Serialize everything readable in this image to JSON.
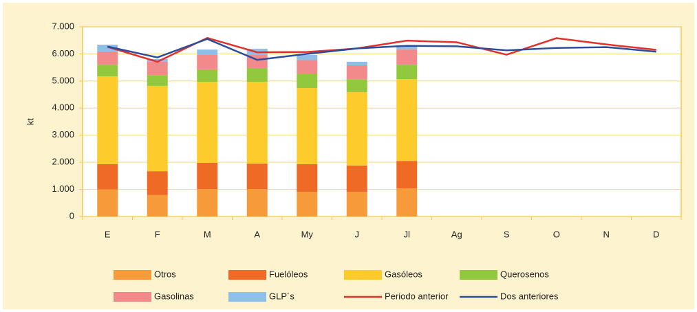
{
  "chart_data": {
    "type": "bar",
    "stacked": true,
    "ylabel": "kt",
    "categories": [
      "E",
      "F",
      "M",
      "A",
      "My",
      "J",
      "Jl",
      "Ag",
      "S",
      "O",
      "N",
      "D"
    ],
    "ylim": [
      0,
      7000
    ],
    "yticks": [
      0,
      {
        "value": 1000,
        "label": "1.000"
      },
      {
        "value": 2000,
        "label": "2.000"
      },
      {
        "value": 3000,
        "label": "3.000"
      },
      {
        "value": 4000,
        "label": "4.000"
      },
      {
        "value": 5000,
        "label": "5.000"
      },
      {
        "value": 6000,
        "label": "6.000"
      },
      {
        "value": 7000,
        "label": "7.000"
      }
    ],
    "grid": true,
    "legend": "bottom",
    "series": [
      {
        "name": "Otros",
        "color": "#f79a3a",
        "values": [
          1000,
          790,
          1010,
          1010,
          910,
          910,
          1040,
          null,
          null,
          null,
          null,
          null
        ]
      },
      {
        "name": "Fuelóleos",
        "color": "#ef6a25",
        "values": [
          930,
          880,
          970,
          940,
          1020,
          970,
          1010,
          null,
          null,
          null,
          null,
          null
        ]
      },
      {
        "name": "Gasóleos",
        "color": "#fdcb2c",
        "values": [
          3240,
          3150,
          2990,
          3020,
          2810,
          2710,
          3020,
          null,
          null,
          null,
          null,
          null
        ]
      },
      {
        "name": "Querosenos",
        "color": "#92c83e",
        "values": [
          430,
          400,
          460,
          510,
          510,
          460,
          530,
          null,
          null,
          null,
          null,
          null
        ]
      },
      {
        "name": "Gasolinas",
        "color": "#f28a8c",
        "values": [
          490,
          490,
          530,
          480,
          530,
          530,
          560,
          null,
          null,
          null,
          null,
          null
        ]
      },
      {
        "name": "GLP´s",
        "color": "#8dbfe8",
        "values": [
          250,
          100,
          200,
          230,
          180,
          130,
          150,
          null,
          null,
          null,
          null,
          null
        ]
      },
      {
        "name": "Periodo anterior",
        "type": "line",
        "color": "#e2312b",
        "values": [
          6260,
          5710,
          6590,
          6060,
          6070,
          6200,
          6490,
          6430,
          5970,
          6580,
          6350,
          6150
        ]
      },
      {
        "name": "Dos anteriores",
        "type": "line",
        "color": "#2c4c9c",
        "values": [
          6270,
          5870,
          6550,
          5780,
          6000,
          6200,
          6300,
          6280,
          6130,
          6220,
          6250,
          6080
        ]
      }
    ]
  }
}
